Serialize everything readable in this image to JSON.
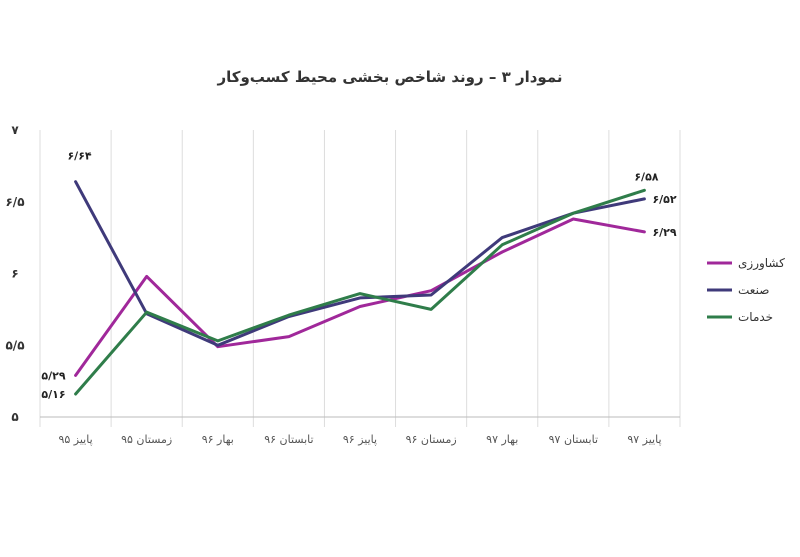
{
  "chart_data": {
    "type": "line",
    "title": "نمودار ۳ – روند شاخص بخشی محیط کسب‌وکار",
    "categories": [
      "پاییز ۹۵",
      "زمستان ۹۵",
      "بهار ۹۶",
      "تابستان ۹۶",
      "پاییز ۹۶",
      "زمستان ۹۶",
      "بهار ۹۷",
      "تابستان ۹۷",
      "پاییز ۹۷"
    ],
    "y_ticks": [
      {
        "value": 5,
        "label": "۵"
      },
      {
        "value": 5.5,
        "label": "۵/۵"
      },
      {
        "value": 6,
        "label": "۶"
      },
      {
        "value": 6.5,
        "label": "۶/۵"
      },
      {
        "value": 7,
        "label": "۷"
      }
    ],
    "ylim": [
      5,
      7
    ],
    "grid": "vertical",
    "legend_position": "right",
    "series": [
      {
        "name": "کشاورزی",
        "color": "#a0289a",
        "values": [
          5.29,
          5.98,
          5.49,
          5.56,
          5.77,
          5.88,
          6.15,
          6.38,
          6.29
        ]
      },
      {
        "name": "صنعت",
        "color": "#3f3a7a",
        "values": [
          6.64,
          5.72,
          5.5,
          5.7,
          5.83,
          5.85,
          6.25,
          6.42,
          6.52
        ]
      },
      {
        "name": "خدمات",
        "color": "#2f7d4a",
        "values": [
          5.16,
          5.73,
          5.53,
          5.71,
          5.86,
          5.75,
          6.2,
          6.42,
          6.58
        ]
      }
    ],
    "data_labels": [
      {
        "series": 0,
        "index": 0,
        "text": "۵/۲۹"
      },
      {
        "series": 2,
        "index": 0,
        "text": "۵/۱۶"
      },
      {
        "series": 1,
        "index": 0,
        "text": "۶/۶۴"
      },
      {
        "series": 2,
        "index": 8,
        "text": "۶/۵۸"
      },
      {
        "series": 1,
        "index": 8,
        "text": "۶/۵۲"
      },
      {
        "series": 0,
        "index": 8,
        "text": "۶/۲۹"
      }
    ]
  }
}
